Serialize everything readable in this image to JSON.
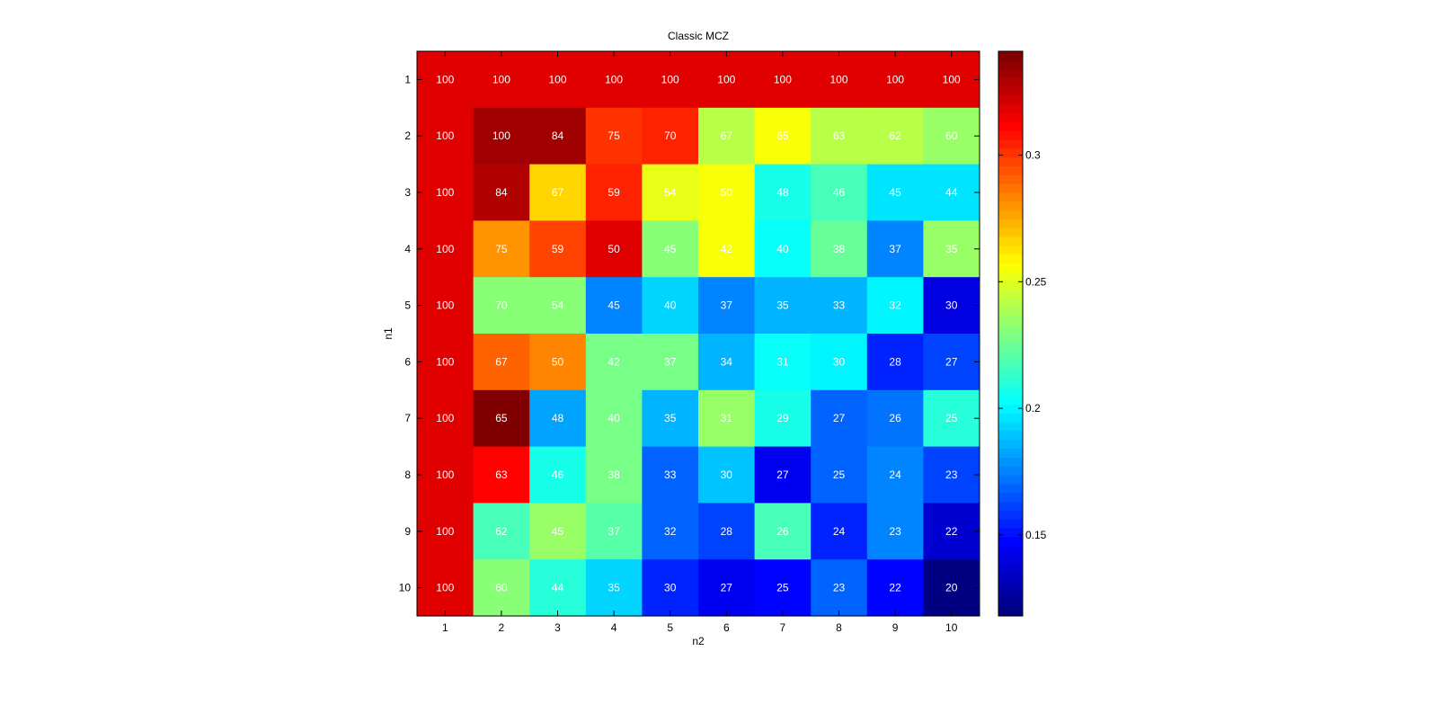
{
  "chart_data": {
    "type": "heatmap",
    "title": "Classic MCZ",
    "xlabel": "n2",
    "ylabel": "n1",
    "x_categories": [
      "1",
      "2",
      "3",
      "4",
      "5",
      "6",
      "7",
      "8",
      "9",
      "10"
    ],
    "y_categories": [
      "1",
      "2",
      "3",
      "4",
      "5",
      "6",
      "7",
      "8",
      "9",
      "10"
    ],
    "colormap": "jet",
    "color_limits": [
      0.118,
      0.341
    ],
    "colorbar_ticks": [
      "0.15",
      "0.2",
      "0.25",
      "0.3"
    ],
    "colorbar_tick_values": [
      0.15,
      0.2,
      0.25,
      0.3
    ],
    "colorbar_placement": "right",
    "grid": false,
    "cell_text_color": "#ffffff",
    "color_values": [
      [
        0.32,
        0.32,
        0.32,
        0.32,
        0.32,
        0.32,
        0.32,
        0.32,
        0.32,
        0.32
      ],
      [
        0.32,
        0.332,
        0.332,
        0.302,
        0.306,
        0.243,
        0.257,
        0.243,
        0.243,
        0.236
      ],
      [
        0.32,
        0.328,
        0.266,
        0.304,
        0.252,
        0.257,
        0.208,
        0.216,
        0.196,
        0.198
      ],
      [
        0.32,
        0.279,
        0.296,
        0.32,
        0.23,
        0.257,
        0.202,
        0.225,
        0.177,
        0.236
      ],
      [
        0.32,
        0.232,
        0.232,
        0.176,
        0.192,
        0.174,
        0.187,
        0.187,
        0.201,
        0.139
      ],
      [
        0.32,
        0.289,
        0.282,
        0.227,
        0.227,
        0.186,
        0.202,
        0.201,
        0.153,
        0.16
      ],
      [
        0.32,
        0.341,
        0.184,
        0.227,
        0.186,
        0.236,
        0.208,
        0.17,
        0.172,
        0.212
      ],
      [
        0.32,
        0.313,
        0.208,
        0.227,
        0.167,
        0.189,
        0.143,
        0.17,
        0.176,
        0.163
      ],
      [
        0.32,
        0.218,
        0.236,
        0.221,
        0.169,
        0.163,
        0.216,
        0.156,
        0.174,
        0.138
      ],
      [
        0.32,
        0.231,
        0.212,
        0.192,
        0.153,
        0.143,
        0.146,
        0.169,
        0.149,
        0.118
      ]
    ],
    "cell_labels": [
      [
        "100",
        "100",
        "100",
        "100",
        "100",
        "100",
        "100",
        "100",
        "100",
        "100"
      ],
      [
        "100",
        "100",
        "84",
        "75",
        "70",
        "67",
        "65",
        "63",
        "62",
        "60"
      ],
      [
        "100",
        "84",
        "67",
        "59",
        "54",
        "50",
        "48",
        "46",
        "45",
        "44"
      ],
      [
        "100",
        "75",
        "59",
        "50",
        "45",
        "42",
        "40",
        "38",
        "37",
        "35"
      ],
      [
        "100",
        "70",
        "54",
        "45",
        "40",
        "37",
        "35",
        "33",
        "32",
        "30"
      ],
      [
        "100",
        "67",
        "50",
        "42",
        "37",
        "34",
        "31",
        "30",
        "28",
        "27"
      ],
      [
        "100",
        "65",
        "48",
        "40",
        "35",
        "31",
        "29",
        "27",
        "26",
        "25"
      ],
      [
        "100",
        "63",
        "46",
        "38",
        "33",
        "30",
        "27",
        "25",
        "24",
        "23"
      ],
      [
        "100",
        "62",
        "45",
        "37",
        "32",
        "28",
        "26",
        "24",
        "23",
        "22"
      ],
      [
        "100",
        "60",
        "44",
        "35",
        "30",
        "27",
        "25",
        "23",
        "22",
        "20"
      ]
    ]
  }
}
